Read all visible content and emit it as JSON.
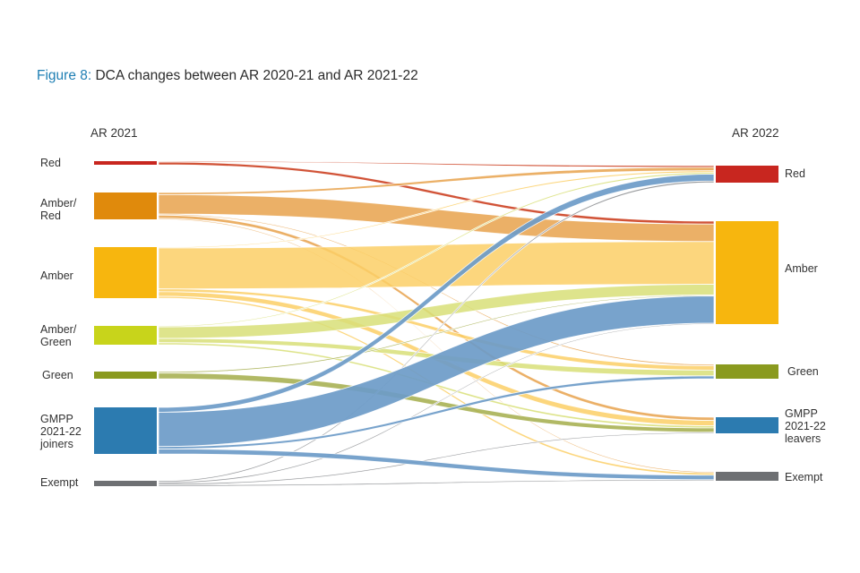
{
  "figure": {
    "label": "Figure 8:",
    "title": "DCA changes between AR 2020-21 and AR 2021-22"
  },
  "columns": {
    "left": "AR 2021",
    "right": "AR 2022"
  },
  "left_nodes": [
    {
      "key": "red",
      "label": "Red",
      "color": "#c8261f"
    },
    {
      "key": "amber_red",
      "label": "Amber/\nRed",
      "color": "#e08a0c"
    },
    {
      "key": "amber",
      "label": "Amber",
      "color": "#f7b60e"
    },
    {
      "key": "amber_green",
      "label": "Amber/\nGreen",
      "color": "#c8d41b"
    },
    {
      "key": "green",
      "label": "Green",
      "color": "#8a9a1f"
    },
    {
      "key": "joiners",
      "label": "GMPP\n2021-22\njoiners",
      "color": "#2c7bb0"
    },
    {
      "key": "exempt",
      "label": "Exempt",
      "color": "#6e7073"
    }
  ],
  "right_nodes": [
    {
      "key": "red",
      "label": "Red",
      "color": "#c8261f"
    },
    {
      "key": "amber",
      "label": "Amber",
      "color": "#f7b60e"
    },
    {
      "key": "green",
      "label": "Green",
      "color": "#8a9a1f"
    },
    {
      "key": "leavers",
      "label": "GMPP\n2021-22\nleavers",
      "color": "#2c7bb0"
    },
    {
      "key": "exempt",
      "label": "Exempt",
      "color": "#6e7073"
    }
  ],
  "flows": [
    {
      "from": "red",
      "to": "red",
      "value": 1
    },
    {
      "from": "red",
      "to": "amber",
      "value": 3
    },
    {
      "from": "amber_red",
      "to": "red",
      "value": 2
    },
    {
      "from": "amber_red",
      "to": "amber",
      "value": 18
    },
    {
      "from": "amber_red",
      "to": "green",
      "value": 1
    },
    {
      "from": "amber_red",
      "to": "leavers",
      "value": 3
    },
    {
      "from": "amber_red",
      "to": "exempt",
      "value": 1
    },
    {
      "from": "amber",
      "to": "red",
      "value": 1
    },
    {
      "from": "amber",
      "to": "amber",
      "value": 44
    },
    {
      "from": "amber",
      "to": "green",
      "value": 3
    },
    {
      "from": "amber",
      "to": "leavers",
      "value": 5
    },
    {
      "from": "amber",
      "to": "exempt",
      "value": 2
    },
    {
      "from": "amber_green",
      "to": "red",
      "value": 1
    },
    {
      "from": "amber_green",
      "to": "amber",
      "value": 11
    },
    {
      "from": "amber_green",
      "to": "green",
      "value": 4
    },
    {
      "from": "amber_green",
      "to": "leavers",
      "value": 2
    },
    {
      "from": "green",
      "to": "amber",
      "value": 1
    },
    {
      "from": "green",
      "to": "leavers",
      "value": 4
    },
    {
      "from": "joiners",
      "to": "red",
      "value": 4
    },
    {
      "from": "joiners",
      "to": "amber",
      "value": 28
    },
    {
      "from": "joiners",
      "to": "green",
      "value": 2
    },
    {
      "from": "joiners",
      "to": "exempt",
      "value": 4
    },
    {
      "from": "exempt",
      "to": "red",
      "value": 1
    },
    {
      "from": "exempt",
      "to": "amber",
      "value": 1
    },
    {
      "from": "exempt",
      "to": "leavers",
      "value": 1
    },
    {
      "from": "exempt",
      "to": "exempt",
      "value": 1
    }
  ]
}
